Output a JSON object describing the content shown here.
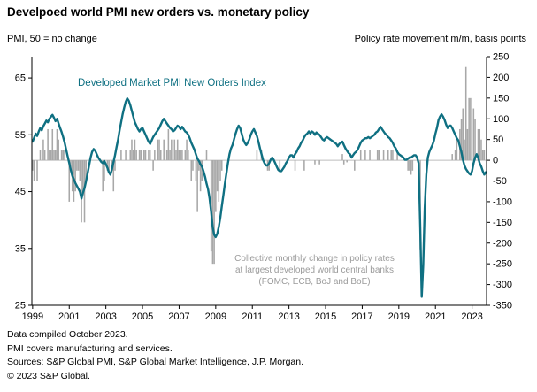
{
  "title": "Develpoed world PMI new orders vs. monetary policy",
  "axis": {
    "left_label": "PMI, 50 = no change",
    "right_label": "Policy rate movement  m/m, basis points"
  },
  "annotations": {
    "line_label": "Developed Market PMI New Orders Index",
    "bar_label": "Collective monthly change in policy rates\nat largest developed world central banks\n(FOMC, ECB, BoJ and BoE)"
  },
  "footer": {
    "lines": [
      "Data compiled October 2023.",
      "PMI covers manufacturing and services.",
      "Sources: S&P Global PMI, S&P Global Market Intelligence, J.P. Morgan.",
      "© 2023 S&P Global."
    ]
  },
  "colors": {
    "line": "#0f7082",
    "bar": "#a8a8a8",
    "zero_line": "#bdbdbd",
    "axis": "#000000"
  },
  "chart_data": {
    "type": "combo",
    "frequency": "monthly",
    "x_start": "1999-01",
    "x_end": "2023-10",
    "x_ticks": [
      1999,
      2001,
      2003,
      2005,
      2007,
      2009,
      2011,
      2013,
      2015,
      2017,
      2019,
      2021,
      2023
    ],
    "left_axis": {
      "label": "PMI, 50 = no change",
      "ticks": [
        25,
        35,
        45,
        55,
        65
      ],
      "min": 25,
      "max": 68.75
    },
    "right_axis": {
      "label": "Policy rate movement m/m, basis points",
      "ticks": [
        250,
        200,
        150,
        100,
        50,
        0,
        -50,
        -100,
        -150,
        -200,
        -250,
        -300,
        -350
      ],
      "min": -350,
      "max": 250
    },
    "series": [
      {
        "name": "Developed Market PMI New Orders Index",
        "type": "line",
        "axis": "left",
        "values": [
          53.8,
          54.5,
          55.2,
          54.8,
          55.6,
          56.2,
          55.8,
          56.5,
          57.0,
          57.5,
          57.2,
          57.8,
          58.2,
          58.5,
          58.0,
          57.4,
          57.8,
          57.0,
          56.2,
          55.5,
          54.6,
          53.6,
          52.4,
          51.2,
          50.0,
          48.8,
          47.8,
          47.2,
          46.5,
          46.0,
          45.5,
          45.0,
          43.8,
          44.8,
          45.6,
          46.8,
          48.2,
          49.6,
          51.0,
          52.0,
          52.5,
          52.2,
          51.6,
          51.0,
          50.6,
          50.2,
          50.0,
          50.4,
          49.8,
          49.2,
          48.4,
          48.0,
          49.0,
          50.2,
          51.4,
          52.8,
          54.2,
          55.8,
          57.2,
          58.6,
          59.8,
          60.8,
          61.4,
          61.0,
          60.2,
          59.2,
          58.2,
          57.2,
          56.6,
          56.0,
          55.6,
          56.0,
          56.2,
          55.6,
          55.0,
          54.4,
          53.8,
          53.4,
          54.0,
          54.6,
          55.0,
          55.4,
          55.8,
          56.2,
          56.8,
          57.4,
          57.8,
          57.4,
          57.0,
          56.6,
          56.2,
          56.0,
          55.6,
          55.8,
          56.2,
          56.6,
          56.4,
          56.0,
          56.4,
          56.0,
          55.6,
          55.4,
          55.0,
          54.4,
          53.6,
          53.0,
          52.4,
          51.6,
          50.8,
          50.4,
          49.8,
          49.4,
          48.6,
          47.6,
          46.4,
          45.4,
          43.8,
          41.4,
          38.8,
          37.4,
          37.0,
          37.6,
          38.8,
          40.4,
          42.4,
          44.4,
          46.4,
          48.2,
          50.0,
          51.6,
          52.6,
          53.2,
          54.2,
          55.2,
          56.0,
          56.6,
          56.2,
          55.2,
          54.2,
          53.6,
          53.2,
          53.6,
          54.2,
          55.0,
          55.6,
          56.0,
          55.4,
          54.8,
          53.8,
          52.6,
          51.6,
          50.6,
          50.0,
          49.6,
          49.6,
          50.0,
          50.6,
          51.0,
          50.6,
          50.0,
          49.4,
          48.8,
          48.6,
          48.6,
          49.0,
          49.4,
          50.0,
          50.4,
          51.0,
          51.4,
          51.4,
          51.0,
          51.6,
          52.0,
          52.6,
          53.0,
          53.6,
          54.0,
          54.6,
          55.0,
          55.2,
          55.6,
          55.2,
          55.6,
          55.4,
          55.0,
          55.4,
          55.2,
          55.0,
          54.6,
          54.2,
          54.0,
          54.4,
          54.6,
          54.4,
          54.2,
          54.0,
          53.8,
          53.6,
          53.4,
          53.0,
          53.4,
          53.6,
          53.8,
          53.2,
          52.6,
          52.2,
          51.8,
          51.6,
          51.0,
          51.4,
          51.8,
          52.0,
          52.4,
          53.0,
          53.6,
          54.0,
          54.2,
          54.4,
          54.4,
          54.6,
          54.4,
          54.6,
          54.8,
          55.0,
          55.4,
          55.6,
          56.0,
          56.4,
          56.0,
          55.6,
          55.2,
          55.0,
          54.6,
          54.4,
          54.0,
          53.6,
          53.0,
          52.6,
          52.0,
          51.6,
          51.4,
          51.2,
          51.0,
          50.6,
          50.6,
          50.8,
          51.0,
          51.0,
          51.2,
          51.4,
          51.4,
          51.0,
          50.0,
          39.0,
          26.5,
          32.0,
          42.0,
          48.0,
          51.0,
          52.0,
          52.6,
          53.2,
          54.0,
          55.2,
          56.2,
          57.6,
          58.2,
          58.6,
          58.2,
          57.6,
          56.8,
          56.2,
          56.6,
          56.6,
          56.2,
          55.6,
          55.0,
          54.4,
          54.0,
          53.0,
          52.0,
          50.6,
          49.6,
          49.0,
          48.6,
          48.2,
          48.0,
          48.6,
          50.0,
          51.0,
          51.6,
          51.0,
          50.0,
          49.4,
          48.6,
          48.0,
          48.4
        ]
      },
      {
        "name": "Policy rate movement m/m, basis points",
        "type": "bar",
        "axis": "right",
        "values": [
          -25,
          -50,
          0,
          -50,
          0,
          25,
          0,
          50,
          25,
          0,
          75,
          25,
          25,
          75,
          25,
          25,
          75,
          50,
          0,
          25,
          25,
          25,
          0,
          0,
          -100,
          -25,
          -75,
          -100,
          -75,
          -25,
          -25,
          -50,
          -150,
          -75,
          -150,
          -50,
          0,
          0,
          0,
          0,
          0,
          0,
          0,
          0,
          0,
          0,
          -75,
          -50,
          0,
          -25,
          -25,
          0,
          -25,
          -75,
          -25,
          0,
          0,
          0,
          25,
          0,
          0,
          25,
          0,
          0,
          25,
          50,
          25,
          50,
          25,
          0,
          25,
          25,
          0,
          25,
          25,
          0,
          25,
          25,
          0,
          -25,
          25,
          0,
          50,
          50,
          25,
          0,
          50,
          0,
          25,
          75,
          25,
          50,
          0,
          50,
          25,
          50,
          25,
          25,
          25,
          0,
          25,
          50,
          25,
          0,
          -50,
          -25,
          0,
          -50,
          -125,
          -25,
          -75,
          -50,
          0,
          0,
          25,
          0,
          0,
          -220,
          -250,
          -250,
          -125,
          -75,
          -100,
          -50,
          -25,
          0,
          0,
          0,
          0,
          0,
          0,
          0,
          0,
          0,
          0,
          0,
          0,
          0,
          0,
          0,
          0,
          0,
          0,
          0,
          0,
          0,
          0,
          25,
          0,
          0,
          25,
          0,
          0,
          0,
          -25,
          -25,
          0,
          0,
          0,
          0,
          0,
          0,
          -25,
          0,
          0,
          0,
          0,
          0,
          0,
          0,
          0,
          0,
          -25,
          0,
          0,
          0,
          0,
          0,
          -25,
          0,
          0,
          0,
          0,
          0,
          0,
          -10,
          0,
          0,
          -10,
          0,
          0,
          0,
          0,
          0,
          0,
          0,
          0,
          0,
          0,
          0,
          0,
          0,
          0,
          15,
          -10,
          0,
          -5,
          0,
          0,
          0,
          0,
          -25,
          0,
          0,
          0,
          25,
          0,
          0,
          25,
          0,
          0,
          25,
          0,
          0,
          0,
          0,
          25,
          25,
          0,
          0,
          25,
          0,
          0,
          25,
          0,
          25,
          25,
          0,
          0,
          25,
          0,
          0,
          0,
          0,
          0,
          0,
          -25,
          -25,
          -35,
          -25,
          0,
          0,
          0,
          0,
          -215,
          0,
          0,
          0,
          0,
          0,
          0,
          0,
          0,
          0,
          0,
          0,
          0,
          0,
          0,
          0,
          0,
          0,
          0,
          0,
          0,
          15,
          0,
          25,
          50,
          0,
          75,
          100,
          125,
          50,
          225,
          75,
          150,
          150,
          0,
          125,
          100,
          0,
          75,
          75,
          50,
          25,
          25,
          0
        ]
      }
    ]
  }
}
